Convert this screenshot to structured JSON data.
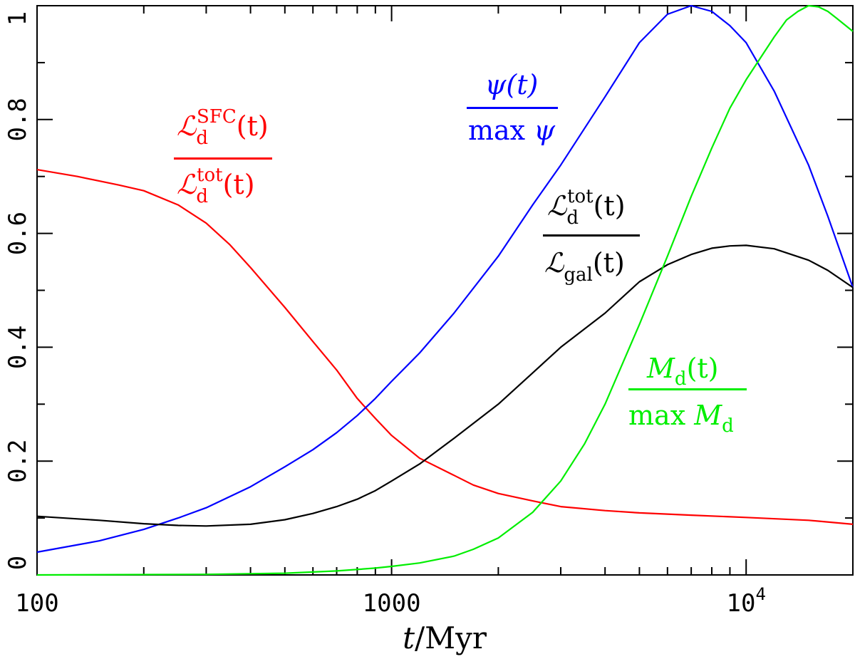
{
  "chart_data": {
    "type": "line",
    "x_scale": "log",
    "xlim": [
      100,
      20000
    ],
    "ylim": [
      0,
      1
    ],
    "xlabel": {
      "var": "t",
      "unit": "/Myr"
    },
    "x_ticks_major": [
      {
        "value": 100,
        "label": "100"
      },
      {
        "value": 1000,
        "label": "1000"
      },
      {
        "value": 10000,
        "label": "10",
        "exponent": "4"
      }
    ],
    "y_ticks_major": [
      {
        "value": 0,
        "label": "0"
      },
      {
        "value": 0.2,
        "label": "0.2"
      },
      {
        "value": 0.4,
        "label": "0.4"
      },
      {
        "value": 0.6,
        "label": "0.6"
      },
      {
        "value": 0.8,
        "label": "0.8"
      },
      {
        "value": 1,
        "label": "1"
      }
    ],
    "series": [
      {
        "name": "Ld_SFC_over_Ld_tot",
        "color": "#ff0000",
        "label": {
          "num_main": "ℒ",
          "num_sub": "d",
          "num_sup": "SFC",
          "num_arg": "(t)",
          "den_main": "ℒ",
          "den_sub": "d",
          "den_sup": "tot",
          "den_arg": "(t)"
        },
        "points": [
          [
            100,
            0.712
          ],
          [
            130,
            0.7
          ],
          [
            170,
            0.685
          ],
          [
            200,
            0.675
          ],
          [
            250,
            0.65
          ],
          [
            300,
            0.618
          ],
          [
            350,
            0.58
          ],
          [
            400,
            0.54
          ],
          [
            500,
            0.47
          ],
          [
            600,
            0.41
          ],
          [
            700,
            0.36
          ],
          [
            800,
            0.31
          ],
          [
            900,
            0.275
          ],
          [
            1000,
            0.245
          ],
          [
            1200,
            0.205
          ],
          [
            1500,
            0.175
          ],
          [
            1700,
            0.158
          ],
          [
            2000,
            0.143
          ],
          [
            2500,
            0.13
          ],
          [
            3000,
            0.12
          ],
          [
            4000,
            0.113
          ],
          [
            5000,
            0.109
          ],
          [
            7000,
            0.105
          ],
          [
            10000,
            0.101
          ],
          [
            15000,
            0.096
          ],
          [
            20000,
            0.089
          ]
        ]
      },
      {
        "name": "psi_over_max_psi",
        "color": "#0000ff",
        "label": {
          "num": "ψ(t)",
          "den_prefix": "max ",
          "den": "ψ"
        },
        "points": [
          [
            100,
            0.04
          ],
          [
            150,
            0.06
          ],
          [
            200,
            0.08
          ],
          [
            250,
            0.1
          ],
          [
            300,
            0.118
          ],
          [
            400,
            0.155
          ],
          [
            500,
            0.19
          ],
          [
            600,
            0.22
          ],
          [
            700,
            0.25
          ],
          [
            800,
            0.28
          ],
          [
            900,
            0.31
          ],
          [
            1000,
            0.34
          ],
          [
            1200,
            0.39
          ],
          [
            1500,
            0.46
          ],
          [
            2000,
            0.56
          ],
          [
            2500,
            0.65
          ],
          [
            3000,
            0.72
          ],
          [
            4000,
            0.84
          ],
          [
            5000,
            0.935
          ],
          [
            6000,
            0.985
          ],
          [
            7000,
            1.0
          ],
          [
            8000,
            0.99
          ],
          [
            9000,
            0.965
          ],
          [
            10000,
            0.935
          ],
          [
            12000,
            0.85
          ],
          [
            15000,
            0.72
          ],
          [
            17000,
            0.63
          ],
          [
            20000,
            0.505
          ]
        ]
      },
      {
        "name": "Ld_tot_over_Lgal",
        "color": "#000000",
        "label": {
          "num_main": "ℒ",
          "num_sub": "d",
          "num_sup": "tot",
          "num_arg": "(t)",
          "den_main": "ℒ",
          "den_sub": "gal",
          "den_arg": "(t)"
        },
        "points": [
          [
            100,
            0.103
          ],
          [
            150,
            0.096
          ],
          [
            200,
            0.09
          ],
          [
            250,
            0.087
          ],
          [
            300,
            0.086
          ],
          [
            400,
            0.089
          ],
          [
            500,
            0.097
          ],
          [
            600,
            0.108
          ],
          [
            700,
            0.12
          ],
          [
            800,
            0.133
          ],
          [
            900,
            0.148
          ],
          [
            1000,
            0.165
          ],
          [
            1200,
            0.195
          ],
          [
            1500,
            0.24
          ],
          [
            2000,
            0.3
          ],
          [
            2500,
            0.355
          ],
          [
            3000,
            0.4
          ],
          [
            4000,
            0.46
          ],
          [
            5000,
            0.515
          ],
          [
            6000,
            0.545
          ],
          [
            7000,
            0.563
          ],
          [
            8000,
            0.574
          ],
          [
            9000,
            0.578
          ],
          [
            10000,
            0.579
          ],
          [
            12000,
            0.573
          ],
          [
            15000,
            0.553
          ],
          [
            17000,
            0.535
          ],
          [
            20000,
            0.505
          ]
        ]
      },
      {
        "name": "Md_over_max_Md",
        "color": "#00ee00",
        "label": {
          "num_main": "M",
          "num_sub": "d",
          "num_arg": "(t)",
          "den_prefix": "max ",
          "den_main": "M",
          "den_sub": "d"
        },
        "points": [
          [
            100,
            0.0
          ],
          [
            300,
            0.001
          ],
          [
            500,
            0.003
          ],
          [
            700,
            0.007
          ],
          [
            900,
            0.012
          ],
          [
            1000,
            0.015
          ],
          [
            1200,
            0.021
          ],
          [
            1500,
            0.033
          ],
          [
            1700,
            0.045
          ],
          [
            2000,
            0.065
          ],
          [
            2500,
            0.11
          ],
          [
            3000,
            0.165
          ],
          [
            3500,
            0.23
          ],
          [
            4000,
            0.3
          ],
          [
            5000,
            0.44
          ],
          [
            6000,
            0.56
          ],
          [
            7000,
            0.665
          ],
          [
            8000,
            0.75
          ],
          [
            9000,
            0.82
          ],
          [
            10000,
            0.87
          ],
          [
            12000,
            0.945
          ],
          [
            13000,
            0.975
          ],
          [
            14000,
            0.99
          ],
          [
            15000,
            1.0
          ],
          [
            16000,
            0.998
          ],
          [
            17000,
            0.99
          ],
          [
            18000,
            0.978
          ],
          [
            20000,
            0.955
          ]
        ]
      }
    ]
  }
}
